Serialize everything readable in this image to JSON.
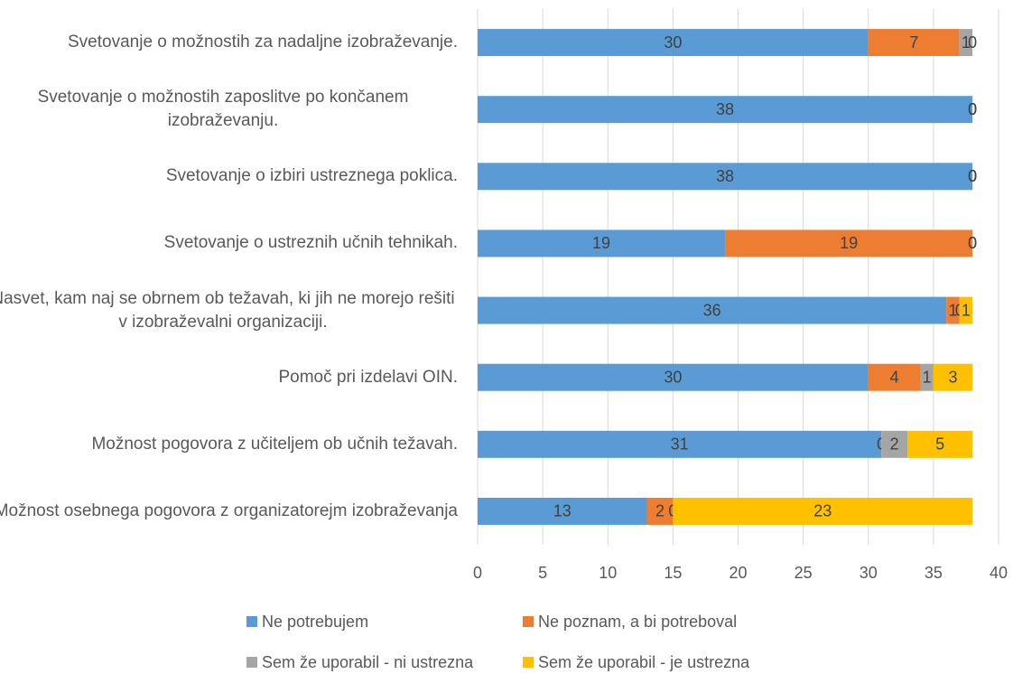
{
  "chart_data": {
    "type": "stacked_barh",
    "categories": [
      "Svetovanje o možnostih za nadaljne izobraževanje.",
      "Svetovanje o možnostih zaposlitve po končanem izobraževanju.",
      "Svetovanje o izbiri ustreznega poklica.",
      "Svetovanje o ustreznih učnih tehnikah.",
      "Nasvet, kam naj se obrnem ob težavah, ki jih ne morejo rešiti v izobraževalni organizaciji.",
      "Pomoč pri izdelavi OIN.",
      "Možnost pogovora z učiteljem ob učnih težavah.",
      "Možnost osebnega pogovora z organizatorejm izobraževanja"
    ],
    "series": [
      {
        "name": "Ne potrebujem",
        "color": "#5b9bd5",
        "values": [
          30,
          38,
          38,
          19,
          36,
          30,
          31,
          13
        ]
      },
      {
        "name": "Ne poznam, a bi potreboval",
        "color": "#ed7d31",
        "values": [
          7,
          0,
          0,
          19,
          1,
          4,
          0,
          2
        ]
      },
      {
        "name": "Sem že uporabil - ni ustrezna",
        "color": "#a5a5a5",
        "values": [
          1,
          0,
          0,
          0,
          0,
          1,
          2,
          0
        ]
      },
      {
        "name": "Sem že uporabil - je ustrezna",
        "color": "#ffc000",
        "values": [
          0,
          0,
          0,
          0,
          1,
          3,
          5,
          23
        ]
      }
    ],
    "xlim": [
      0,
      40
    ],
    "xticks": [
      0,
      5,
      10,
      15,
      20,
      25,
      30,
      35,
      40
    ],
    "grid": true,
    "legend": "bottom"
  }
}
